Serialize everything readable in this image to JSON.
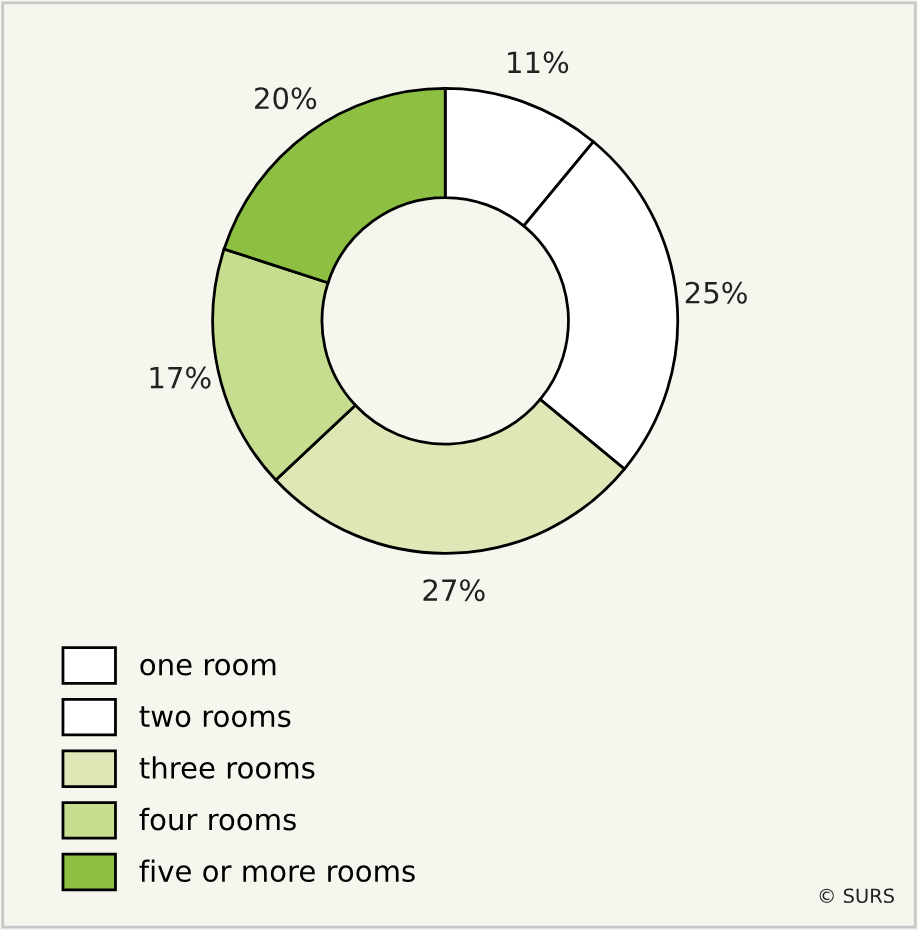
{
  "chart_data": {
    "type": "donut",
    "categories": [
      "one room",
      "two rooms",
      "three rooms",
      "four rooms",
      "five or more rooms"
    ],
    "values": [
      11,
      25,
      27,
      17,
      20
    ],
    "colors": [
      "#ffffff",
      "#ffffff",
      "#dde8b6",
      "#c6dc8f",
      "#8cbf42"
    ],
    "value_labels": [
      "11%",
      "25%",
      "27%",
      "17%",
      "20%"
    ],
    "legend": "bottom left",
    "annotations": [
      "© SURS"
    ]
  }
}
